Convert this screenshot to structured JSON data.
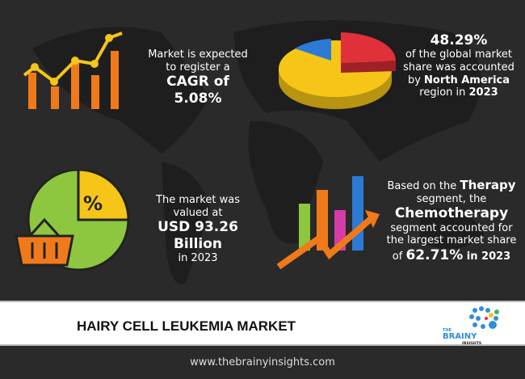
{
  "cagr": {
    "line1": "Market is expected",
    "line2": "to register a",
    "line3": "CAGR of 5.08%"
  },
  "region": {
    "value": "48.29%",
    "line1": "of the global market",
    "line2": "share was accounted",
    "line3_pre": "by ",
    "line3_bold": "North America",
    "line4_pre": "region in ",
    "line4_bold": "2023"
  },
  "value": {
    "line1": "The market was",
    "line2": "valued at",
    "line3": "USD 93.26 Billion",
    "line4": "in 2023"
  },
  "segment": {
    "l1_pre": "Based on the ",
    "l1_bold": "Therapy",
    "l2": "segment, the",
    "l3": "Chemotherapy",
    "l4": "segment accounted for",
    "l5": "the largest market share",
    "l6_pre": "of ",
    "l6_bold": "62.71%",
    "l6_post": " in 2023"
  },
  "pie_icon_label": "%",
  "banner": {
    "title": "HAIRY CELL LEUKEMIA MARKET",
    "logo_the": "THE",
    "logo_brainy": "BRAINY",
    "logo_insights": "INSIGHTS"
  },
  "footer": {
    "url": "www.thebrainyinsights.com"
  },
  "colors": {
    "orange": "#f07a1a",
    "yellow": "#f5c518",
    "green": "#8dc63f",
    "blue": "#2d7ad6",
    "red": "#e0303a",
    "pink": "#d63ca8",
    "logo_blue": "#2f8fd8"
  }
}
